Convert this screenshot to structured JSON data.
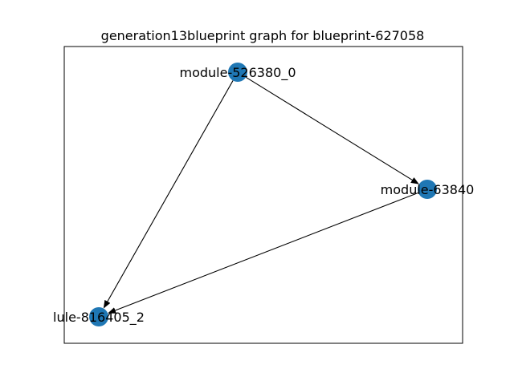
{
  "title": "generation13blueprint graph for blueprint-627058",
  "colors": {
    "node": "#1f77b4",
    "edge": "#000000",
    "frame": "#000000",
    "background": "#ffffff"
  },
  "graph": {
    "directed": true,
    "nodes": [
      {
        "id": "n0",
        "label": "module-526380_0"
      },
      {
        "id": "n1",
        "label": "module-63840"
      },
      {
        "id": "n2",
        "label": "lule-816405_2"
      }
    ],
    "edges": [
      {
        "from": "n0",
        "to": "n1"
      },
      {
        "from": "n0",
        "to": "n2"
      },
      {
        "from": "n1",
        "to": "n2"
      }
    ]
  }
}
